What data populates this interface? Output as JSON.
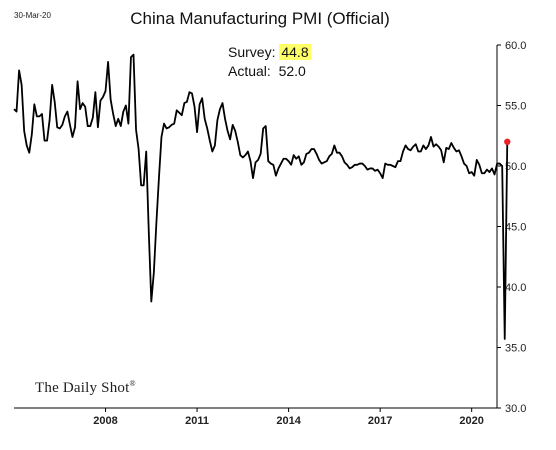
{
  "header": {
    "date_stamp": "30-Mar-20",
    "title": "China Manufacturing PMI (Official)"
  },
  "annotation": {
    "survey_label": "Survey:",
    "survey_value": "44.8",
    "actual_label": "Actual:",
    "actual_value": "52.0"
  },
  "watermark": "The Daily Shot",
  "colors": {
    "line": "#000000",
    "last_point": "#e8242a",
    "highlight": "#ffff66"
  },
  "chart_data": {
    "type": "line",
    "title": "China Manufacturing PMI (Official)",
    "xlabel": "",
    "ylabel": "",
    "ylim": [
      30,
      60
    ],
    "xlim": [
      2005.0,
      2020.83
    ],
    "y_ticks": [
      "60.0",
      "55.0",
      "50.0",
      "45.0",
      "40.0",
      "35.0",
      "30.0"
    ],
    "x_ticks": [
      {
        "label": "2008",
        "x": 2008.0
      },
      {
        "label": "2011",
        "x": 2011.0
      },
      {
        "label": "2014",
        "x": 2014.0
      },
      {
        "label": "2017",
        "x": 2017.0
      },
      {
        "label": "2020",
        "x": 2020.0
      }
    ],
    "y_axis_position": "right",
    "grid": false,
    "highlight_last_point": true,
    "series": [
      {
        "start_year": 2005.0,
        "step_months": 1,
        "values": [
          54.7,
          54.5,
          57.9,
          56.7,
          52.9,
          51.7,
          51.1,
          52.6,
          55.1,
          54.1,
          54.1,
          54.3,
          52.1,
          52.1,
          53.8,
          56.7,
          55.3,
          53.2,
          53.1,
          53.4,
          54.1,
          54.5,
          53.4,
          52.4,
          53.2,
          57.0,
          54.7,
          55.2,
          54.9,
          53.3,
          53.3,
          54.0,
          56.1,
          53.2,
          55.4,
          55.7,
          56.2,
          58.6,
          55.5,
          54.3,
          53.3,
          53.9,
          53.3,
          54.5,
          55.0,
          53.5,
          59.0,
          59.2,
          53.0,
          51.4,
          48.4,
          48.4,
          51.2,
          44.6,
          38.8,
          41.2,
          45.3,
          49.0,
          52.4,
          53.5,
          53.1,
          53.2,
          53.4,
          53.5,
          54.6,
          54.4,
          54.2,
          55.2,
          55.3,
          56.1,
          56.0,
          54.9,
          52.8,
          55.1,
          55.6,
          53.9,
          53.1,
          52.1,
          51.2,
          51.7,
          53.8,
          54.7,
          55.2,
          53.9,
          52.9,
          52.2,
          53.4,
          52.9,
          52.0,
          50.9,
          50.7,
          50.9,
          51.2,
          50.4,
          49.0,
          50.3,
          50.5,
          51.0,
          53.1,
          53.3,
          50.4,
          50.2,
          50.1,
          49.2,
          49.8,
          50.2,
          50.6,
          50.6,
          50.4,
          50.1,
          50.9,
          50.6,
          50.8,
          50.1,
          50.3,
          51.0,
          51.1,
          51.4,
          51.4,
          51.0,
          50.5,
          50.2,
          50.3,
          50.4,
          50.8,
          51.0,
          51.7,
          51.1,
          51.1,
          50.8,
          50.3,
          50.1,
          49.8,
          49.9,
          50.1,
          50.1,
          50.2,
          50.2,
          50.0,
          49.7,
          49.8,
          49.8,
          49.6,
          49.7,
          49.4,
          49.0,
          50.2,
          50.1,
          50.1,
          50.0,
          49.9,
          50.4,
          50.4,
          51.2,
          51.7,
          51.4,
          51.3,
          51.6,
          51.8,
          51.2,
          51.2,
          51.7,
          51.4,
          51.7,
          52.4,
          51.6,
          51.8,
          51.6,
          51.3,
          50.3,
          51.5,
          51.4,
          51.9,
          51.5,
          51.2,
          51.3,
          50.8,
          50.2,
          50.0,
          49.4,
          49.5,
          49.2,
          50.5,
          50.1,
          49.4,
          49.4,
          49.7,
          49.5,
          49.8,
          49.3,
          50.2,
          50.2,
          50.0,
          35.7,
          52.0
        ]
      }
    ]
  }
}
